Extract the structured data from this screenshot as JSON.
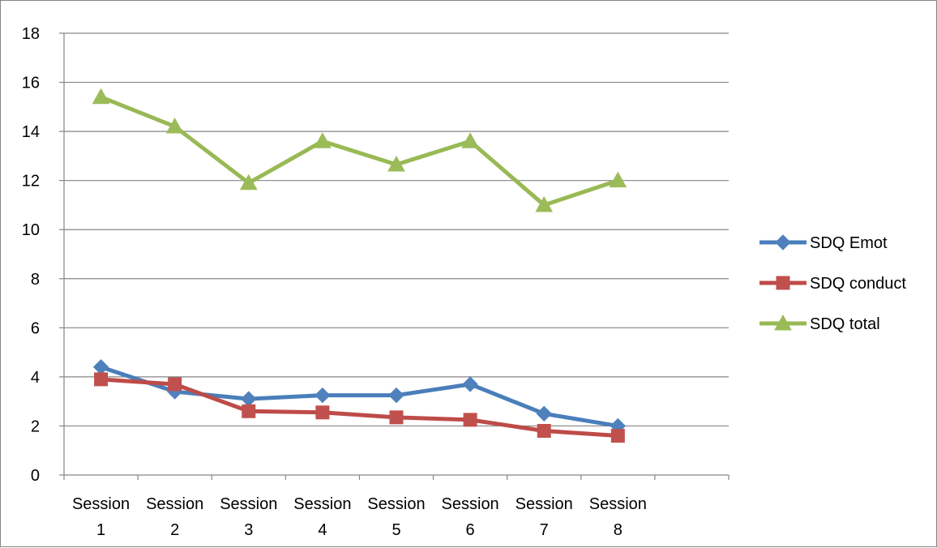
{
  "chart_data": {
    "type": "line",
    "title": "",
    "xlabel": "",
    "ylabel": "",
    "categories": [
      [
        "Session",
        "1"
      ],
      [
        "Session",
        "2"
      ],
      [
        "Session",
        "3"
      ],
      [
        "Session",
        "4"
      ],
      [
        "Session",
        "5"
      ],
      [
        "Session",
        "6"
      ],
      [
        "Session",
        "7"
      ],
      [
        "Session",
        "8"
      ]
    ],
    "category_slots": 9,
    "ylim": [
      0,
      18
    ],
    "yticks": [
      0,
      2,
      4,
      6,
      8,
      10,
      12,
      14,
      16,
      18
    ],
    "grid": "horizontal",
    "legend_position": "right",
    "series": [
      {
        "name": "SDQ Emot",
        "marker": "diamond",
        "color": "#4A7EBB",
        "marker_color": "#4F81BD",
        "values": [
          4.4,
          3.4,
          3.1,
          3.25,
          3.25,
          3.7,
          2.5,
          2.0
        ]
      },
      {
        "name": "SDQ conduct",
        "marker": "square",
        "color": "#BE4B48",
        "marker_color": "#C0504D",
        "values": [
          3.9,
          3.7,
          2.6,
          2.55,
          2.35,
          2.25,
          1.8,
          1.6
        ]
      },
      {
        "name": "SDQ total",
        "marker": "triangle",
        "color": "#98B954",
        "marker_color": "#9BBB59",
        "values": [
          15.4,
          14.2,
          11.9,
          13.6,
          12.65,
          13.6,
          11.0,
          12.0
        ]
      }
    ]
  }
}
